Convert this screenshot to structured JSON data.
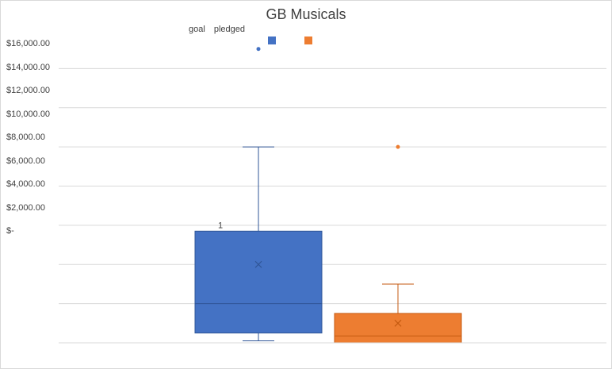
{
  "chart_data": {
    "type": "box",
    "title": "GB Musicals",
    "legend": {
      "labels": [
        "goal",
        "pledged"
      ]
    },
    "y_tick_labels": [
      "$16,000.00",
      "$14,000.00",
      "$12,000.00",
      "$10,000.00",
      "$8,000.00",
      "$6,000.00",
      "$4,000.00",
      "$2,000.00",
      "$-"
    ],
    "ylim": [
      0,
      16000
    ],
    "grid": true,
    "series": [
      {
        "name": "goal",
        "color": "#4472c4",
        "min": 100,
        "q1": 500,
        "median": 2000,
        "q3": 5700,
        "max": 10000,
        "mean": 4000,
        "outliers": [
          15000
        ],
        "label": "1"
      },
      {
        "name": "pledged",
        "color": "#ed7d31",
        "min": 0,
        "q1": 0,
        "median": 350,
        "q3": 1500,
        "max": 3000,
        "mean": 1000,
        "outliers": [
          10000
        ]
      }
    ]
  }
}
